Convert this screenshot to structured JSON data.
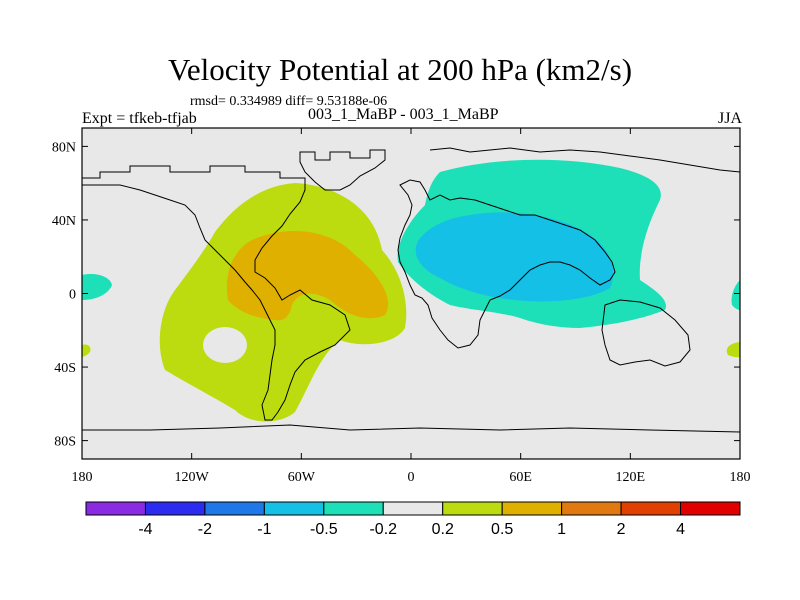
{
  "header": {
    "title": "Velocity Potential at 200 hPa (km2/s)",
    "stats": "rmsd= 0.334989 diff= 9.53188e-06",
    "expt": "Expt = tfkeb-tfjab",
    "cases": "003_1_MaBP - 003_1_MaBP",
    "season": "JJA"
  },
  "map": {
    "background": "#e8e8e8",
    "lat_ticks": [
      {
        "value": 80,
        "label": "80N"
      },
      {
        "value": 40,
        "label": "40N"
      },
      {
        "value": 0,
        "label": "0"
      },
      {
        "value": -40,
        "label": "40S"
      },
      {
        "value": -80,
        "label": "80S"
      }
    ],
    "lon_ticks": [
      {
        "value": -180,
        "label": "180"
      },
      {
        "value": -120,
        "label": "120W"
      },
      {
        "value": -60,
        "label": "60W"
      },
      {
        "value": 0,
        "label": "0"
      },
      {
        "value": 60,
        "label": "60E"
      },
      {
        "value": 120,
        "label": "120E"
      },
      {
        "value": 180,
        "label": "180"
      }
    ]
  },
  "colorbar": {
    "colors": [
      "#8a2be2",
      "#2c2cf0",
      "#1e78e8",
      "#14c0e6",
      "#1ee0b8",
      "#e8e8e8",
      "#bcdc10",
      "#e0b000",
      "#e07a10",
      "#e04000",
      "#e00000"
    ],
    "labels": [
      "-4",
      "-2",
      "-1",
      "-0.5",
      "-0.2",
      "0.2",
      "0.5",
      "1",
      "2",
      "4"
    ]
  }
}
